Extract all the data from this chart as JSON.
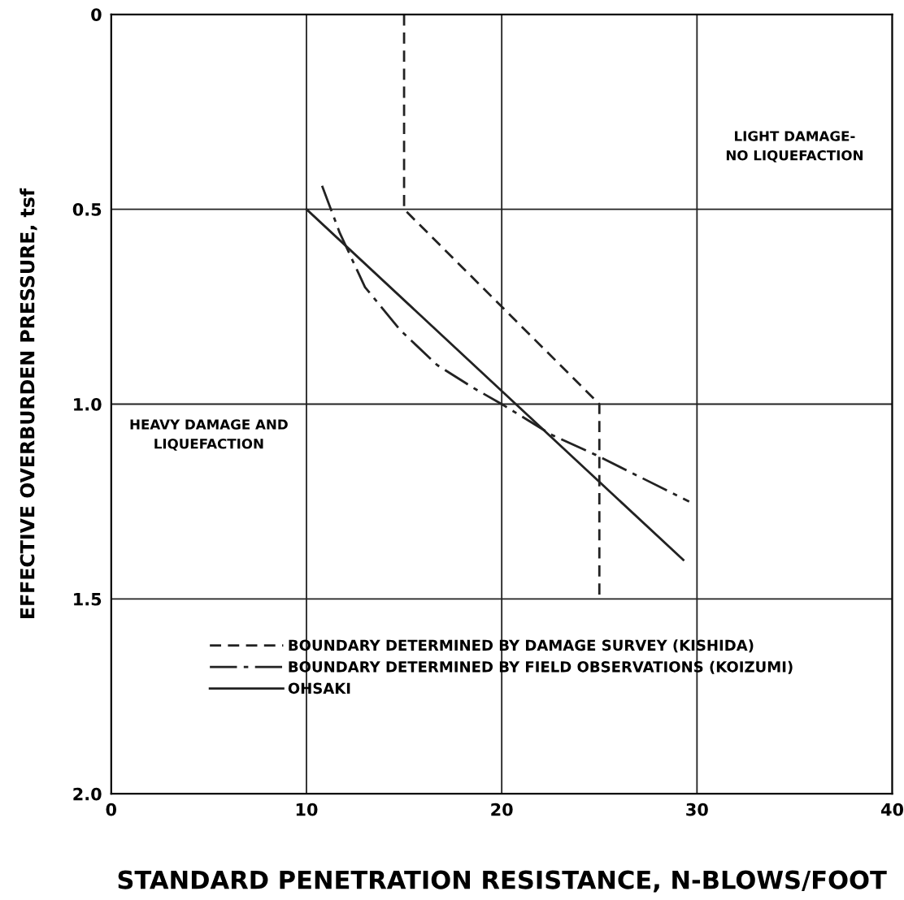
{
  "chart_data": {
    "type": "line",
    "xlabel": "STANDARD PENETRATION RESISTANCE, N-BLOWS/FOOT",
    "ylabel": "EFFECTIVE OVERBURDEN PRESSURE, tsf",
    "xlim": [
      0,
      40
    ],
    "xticks": [
      0,
      10,
      20,
      30,
      40
    ],
    "ylim": [
      2.0,
      0
    ],
    "yticks": [
      0,
      0.5,
      {
        "value": 1.0,
        "label": "1.0"
      },
      1.5,
      {
        "value": 2.0,
        "label": "2.0"
      }
    ],
    "grid": true,
    "legend": "bottom",
    "marker": "none",
    "series": [
      {
        "name": "BOUNDARY DETERMINED BY DAMAGE SURVEY (KISHIDA)",
        "color": "#222222",
        "line_style": "dashed",
        "x": [
          15,
          15,
          25,
          25
        ],
        "values": [
          0,
          0.5,
          1.0,
          1.5
        ]
      },
      {
        "name": "BOUNDARY DETERMINED BY FIELD OBSERVATIONS (KOIZUMI)",
        "color": "#222222",
        "line_style": "dashdot",
        "x": [
          10.8,
          11.7,
          13.0,
          14.8,
          16.7,
          18.6,
          20.0,
          22.6,
          24.8,
          29.6
        ],
        "values": [
          0.44,
          0.56,
          0.7,
          0.81,
          0.9,
          0.96,
          1.0,
          1.08,
          1.13,
          1.25
        ]
      },
      {
        "name": "OHSAKI",
        "color": "#222222",
        "line_style": "solid",
        "x": [
          10,
          29.3
        ],
        "values": [
          0.5,
          1.4
        ]
      }
    ],
    "annotations": [
      "LIGHT DAMAGE-\nNO LIQUEFACTION",
      "HEAVY DAMAGE AND\nLIQUEFACTION"
    ]
  }
}
